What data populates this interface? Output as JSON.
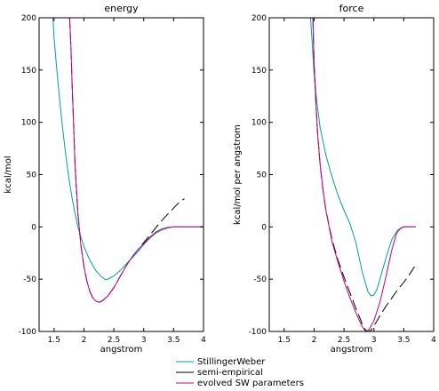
{
  "chart_data": [
    {
      "type": "line",
      "title": "energy",
      "xlabel": "angstrom",
      "ylabel": "kcal/mol",
      "xlim": [
        1.25,
        4.0
      ],
      "ylim": [
        -100,
        200
      ],
      "xticks": [
        1.5,
        2,
        2.5,
        3,
        3.5,
        4
      ],
      "xtick_labels": [
        "1.5",
        "2",
        "2.5",
        "3",
        "3.5",
        "4"
      ],
      "yticks": [
        -100,
        -50,
        0,
        50,
        100,
        150,
        200
      ],
      "ytick_labels": [
        "-100",
        "-50",
        "0",
        "50",
        "100",
        "150",
        "200"
      ],
      "grid": false,
      "series": [
        {
          "name": "StillingerWeber",
          "color": "#00a0a0",
          "points": [
            [
              1.48,
              200
            ],
            [
              1.5,
              181
            ],
            [
              1.55,
              148
            ],
            [
              1.6,
              118
            ],
            [
              1.65,
              91
            ],
            [
              1.7,
              67
            ],
            [
              1.75,
              46
            ],
            [
              1.8,
              28
            ],
            [
              1.85,
              13
            ],
            [
              1.9,
              0
            ],
            [
              1.95,
              -10
            ],
            [
              2.0,
              -19
            ],
            [
              2.1,
              -32
            ],
            [
              2.2,
              -42
            ],
            [
              2.3,
              -48
            ],
            [
              2.35,
              -50
            ],
            [
              2.4,
              -50
            ],
            [
              2.5,
              -47
            ],
            [
              2.6,
              -42
            ],
            [
              2.7,
              -36
            ],
            [
              2.8,
              -30
            ],
            [
              2.9,
              -24
            ],
            [
              3.0,
              -17
            ],
            [
              3.1,
              -11
            ],
            [
              3.2,
              -6
            ],
            [
              3.3,
              -3
            ],
            [
              3.4,
              -1
            ],
            [
              3.5,
              0
            ],
            [
              3.6,
              0
            ],
            [
              4.0,
              0
            ]
          ]
        },
        {
          "name": "semi-empirical",
          "color": "#000000",
          "points": [
            [
              1.76,
              200
            ],
            [
              1.78,
              175
            ],
            [
              1.8,
              140
            ],
            [
              1.82,
              110
            ],
            [
              1.85,
              60
            ],
            [
              1.88,
              30
            ],
            [
              1.9,
              12
            ],
            [
              1.95,
              -18
            ],
            [
              2.0,
              -38
            ],
            [
              2.05,
              -52
            ],
            [
              2.1,
              -62
            ],
            [
              2.15,
              -68
            ],
            [
              2.2,
              -71
            ],
            [
              2.25,
              -72
            ],
            [
              2.3,
              -71
            ],
            [
              2.4,
              -66
            ],
            [
              2.5,
              -58
            ],
            [
              2.6,
              -48
            ],
            [
              2.7,
              -38
            ],
            [
              2.8,
              -29
            ],
            [
              2.9,
              -22
            ],
            [
              3.0,
              -15
            ],
            [
              3.1,
              -8
            ],
            [
              3.2,
              -1
            ],
            [
              3.3,
              6
            ],
            [
              3.4,
              12
            ],
            [
              3.5,
              18
            ],
            [
              3.6,
              24
            ],
            [
              3.68,
              27
            ]
          ]
        },
        {
          "name": "evolved SW parameters",
          "color": "#c0007a",
          "points": [
            [
              1.76,
              200
            ],
            [
              1.78,
              175
            ],
            [
              1.8,
              140
            ],
            [
              1.82,
              110
            ],
            [
              1.85,
              60
            ],
            [
              1.88,
              30
            ],
            [
              1.9,
              12
            ],
            [
              1.95,
              -18
            ],
            [
              2.0,
              -38
            ],
            [
              2.05,
              -52
            ],
            [
              2.1,
              -62
            ],
            [
              2.15,
              -68
            ],
            [
              2.2,
              -71
            ],
            [
              2.25,
              -72
            ],
            [
              2.3,
              -71
            ],
            [
              2.4,
              -66
            ],
            [
              2.5,
              -58
            ],
            [
              2.6,
              -48
            ],
            [
              2.7,
              -38
            ],
            [
              2.8,
              -29
            ],
            [
              2.9,
              -22
            ],
            [
              3.0,
              -16
            ],
            [
              3.1,
              -10
            ],
            [
              3.2,
              -5
            ],
            [
              3.3,
              -2
            ],
            [
              3.4,
              -0.5
            ],
            [
              3.5,
              0
            ],
            [
              3.6,
              0
            ],
            [
              4.0,
              0
            ]
          ]
        }
      ]
    },
    {
      "type": "line",
      "title": "force",
      "xlabel": "angstrom",
      "ylabel": "kcal/mol per angstrom",
      "xlim": [
        1.25,
        4.0
      ],
      "ylim": [
        -100,
        200
      ],
      "xticks": [
        1.5,
        2,
        2.5,
        3,
        3.5,
        4
      ],
      "xtick_labels": [
        "1.5",
        "2",
        "2.5",
        "3",
        "3.5",
        "4"
      ],
      "yticks": [
        -100,
        -50,
        0,
        50,
        100,
        150,
        200
      ],
      "ytick_labels": [
        "-100",
        "-50",
        "0",
        "50",
        "100",
        "150",
        "200"
      ],
      "grid": false,
      "series": [
        {
          "name": "StillingerWeber",
          "color": "#00a0a0",
          "points": [
            [
              1.94,
              200
            ],
            [
              1.97,
              175
            ],
            [
              2.0,
              145
            ],
            [
              2.05,
              118
            ],
            [
              2.1,
              95
            ],
            [
              2.2,
              68
            ],
            [
              2.3,
              48
            ],
            [
              2.4,
              30
            ],
            [
              2.5,
              16
            ],
            [
              2.6,
              3
            ],
            [
              2.7,
              -15
            ],
            [
              2.8,
              -42
            ],
            [
              2.9,
              -62
            ],
            [
              2.95,
              -66
            ],
            [
              3.0,
              -65
            ],
            [
              3.05,
              -60
            ],
            [
              3.1,
              -50
            ],
            [
              3.2,
              -30
            ],
            [
              3.3,
              -12
            ],
            [
              3.4,
              -3
            ],
            [
              3.5,
              0
            ],
            [
              3.6,
              0
            ],
            [
              3.7,
              0
            ]
          ]
        },
        {
          "name": "semi-empirical",
          "color": "#000000",
          "points": [
            [
              1.98,
              200
            ],
            [
              2.0,
              155
            ],
            [
              2.03,
              118
            ],
            [
              2.06,
              88
            ],
            [
              2.1,
              60
            ],
            [
              2.15,
              35
            ],
            [
              2.2,
              15
            ],
            [
              2.3,
              -12
            ],
            [
              2.4,
              -32
            ],
            [
              2.5,
              -48
            ],
            [
              2.6,
              -63
            ],
            [
              2.7,
              -78
            ],
            [
              2.8,
              -92
            ],
            [
              2.85,
              -98
            ],
            [
              2.9,
              -100
            ],
            [
              2.95,
              -99
            ],
            [
              3.0,
              -95
            ],
            [
              3.1,
              -85
            ],
            [
              3.2,
              -76
            ],
            [
              3.3,
              -68
            ],
            [
              3.4,
              -60
            ],
            [
              3.5,
              -53
            ],
            [
              3.6,
              -45
            ],
            [
              3.68,
              -38
            ]
          ]
        },
        {
          "name": "evolved SW parameters",
          "color": "#c0007a",
          "points": [
            [
              1.98,
              200
            ],
            [
              2.0,
              155
            ],
            [
              2.03,
              118
            ],
            [
              2.06,
              88
            ],
            [
              2.1,
              60
            ],
            [
              2.15,
              35
            ],
            [
              2.2,
              15
            ],
            [
              2.3,
              -14
            ],
            [
              2.4,
              -34
            ],
            [
              2.5,
              -52
            ],
            [
              2.6,
              -68
            ],
            [
              2.7,
              -82
            ],
            [
              2.8,
              -95
            ],
            [
              2.85,
              -99
            ],
            [
              2.88,
              -100
            ],
            [
              2.92,
              -98
            ],
            [
              3.0,
              -90
            ],
            [
              3.1,
              -72
            ],
            [
              3.2,
              -48
            ],
            [
              3.3,
              -22
            ],
            [
              3.38,
              -6
            ],
            [
              3.45,
              -1
            ],
            [
              3.5,
              0
            ],
            [
              3.7,
              0
            ]
          ]
        }
      ]
    }
  ],
  "legend": {
    "placement": "bottom-center",
    "entries": [
      {
        "label": "StillingerWeber",
        "color": "#00a0a0"
      },
      {
        "label": "semi-empirical",
        "color": "#000000"
      },
      {
        "label": "evolved SW parameters",
        "color": "#c0007a"
      }
    ]
  }
}
